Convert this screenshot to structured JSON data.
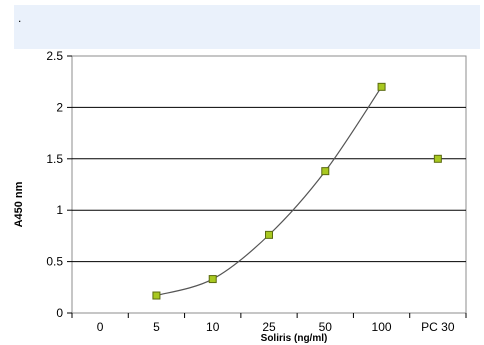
{
  "header": {
    "text": "."
  },
  "chart_data": {
    "type": "line",
    "title": "",
    "xlabel": "Soliris (ng/ml)",
    "ylabel": "A450 nm",
    "categories": [
      "0",
      "5",
      "10",
      "25",
      "50",
      "100",
      "PC 30"
    ],
    "ylim": [
      0,
      2.5
    ],
    "yticks": [
      "0",
      "0.5",
      "1",
      "1.5",
      "2",
      "2.5"
    ],
    "grid": true,
    "series": [
      {
        "values": [
          null,
          0.17,
          0.33,
          0.76,
          1.38,
          2.2,
          null
        ],
        "connected": true,
        "color": "#a8c820"
      },
      {
        "values": [
          null,
          null,
          null,
          null,
          null,
          null,
          1.5
        ],
        "connected": false,
        "color": "#a8c820"
      }
    ]
  }
}
